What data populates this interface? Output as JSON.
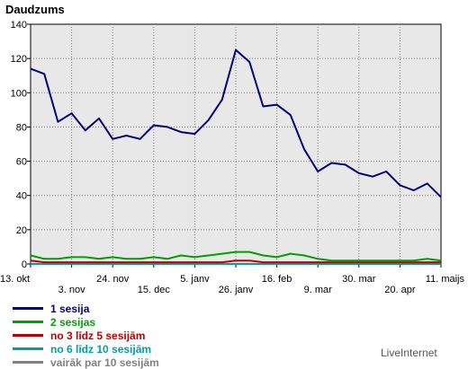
{
  "chart_data": {
    "type": "line",
    "ylabel": "Daudzums",
    "ylim": [
      0,
      140
    ],
    "yticks": [
      0,
      20,
      40,
      60,
      80,
      100,
      120,
      140
    ],
    "grid": true,
    "legend_position": "bottom-left",
    "x_tick_labels": [
      "13. okt",
      "3. nov",
      "24. nov",
      "15. dec",
      "5. janv",
      "26. janv",
      "16. feb",
      "9. mar",
      "30. mar",
      "20. apr",
      "11. maijs"
    ],
    "x": [
      "13. okt",
      "20. okt",
      "27. okt",
      "3. nov",
      "10. nov",
      "17. nov",
      "24. nov",
      "1. dec",
      "8. dec",
      "15. dec",
      "22. dec",
      "29. dec",
      "5. janv",
      "12. janv",
      "19. janv",
      "26. janv",
      "2. feb",
      "9. feb",
      "16. feb",
      "23. feb",
      "2. mar",
      "9. mar",
      "16. mar",
      "23. mar",
      "30. mar",
      "6. apr",
      "13. apr",
      "20. apr",
      "27. apr",
      "4. maijs",
      "11. maijs"
    ],
    "series": [
      {
        "name": "1 sesija",
        "color": "#000080",
        "values": [
          114,
          111,
          83,
          88,
          78,
          85,
          73,
          75,
          73,
          81,
          80,
          77,
          76,
          84,
          96,
          125,
          118,
          92,
          93,
          87,
          67,
          54,
          59,
          58,
          53,
          51,
          54,
          46,
          43,
          47,
          39
        ]
      },
      {
        "name": "2 sesijas",
        "color": "#00a000",
        "values": [
          5,
          3,
          3,
          4,
          4,
          3,
          4,
          3,
          3,
          4,
          3,
          5,
          4,
          5,
          6,
          7,
          7,
          5,
          4,
          6,
          5,
          3,
          2,
          2,
          2,
          2,
          2,
          2,
          2,
          3,
          2
        ]
      },
      {
        "name": "no 3 līdz 5 sesijām",
        "color": "#c00000",
        "values": [
          2,
          1,
          1,
          1,
          1,
          1,
          1,
          1,
          1,
          1,
          1,
          1,
          1,
          1,
          1,
          2,
          2,
          1,
          1,
          1,
          1,
          1,
          1,
          1,
          1,
          1,
          1,
          1,
          1,
          1,
          1
        ]
      },
      {
        "name": "no 6 līdz 10 sesijām",
        "color": "#00a0a0",
        "values": [
          0,
          0,
          0,
          0,
          0,
          0,
          0,
          0,
          0,
          0,
          0,
          0,
          0,
          0,
          0,
          0,
          0,
          0,
          0,
          0,
          0,
          0,
          0,
          0,
          0,
          0,
          0,
          0,
          0,
          0,
          0
        ]
      },
      {
        "name": "vairāk par 10 sesijām",
        "color": "#808080",
        "values": [
          0,
          0,
          0,
          0,
          0,
          0,
          0,
          0,
          0,
          0,
          0,
          0,
          0,
          0,
          0,
          0,
          0,
          0,
          0,
          0,
          0,
          0,
          0,
          0,
          0,
          0,
          0,
          0,
          0,
          0,
          0
        ]
      }
    ]
  },
  "brand": "LiveInternet"
}
